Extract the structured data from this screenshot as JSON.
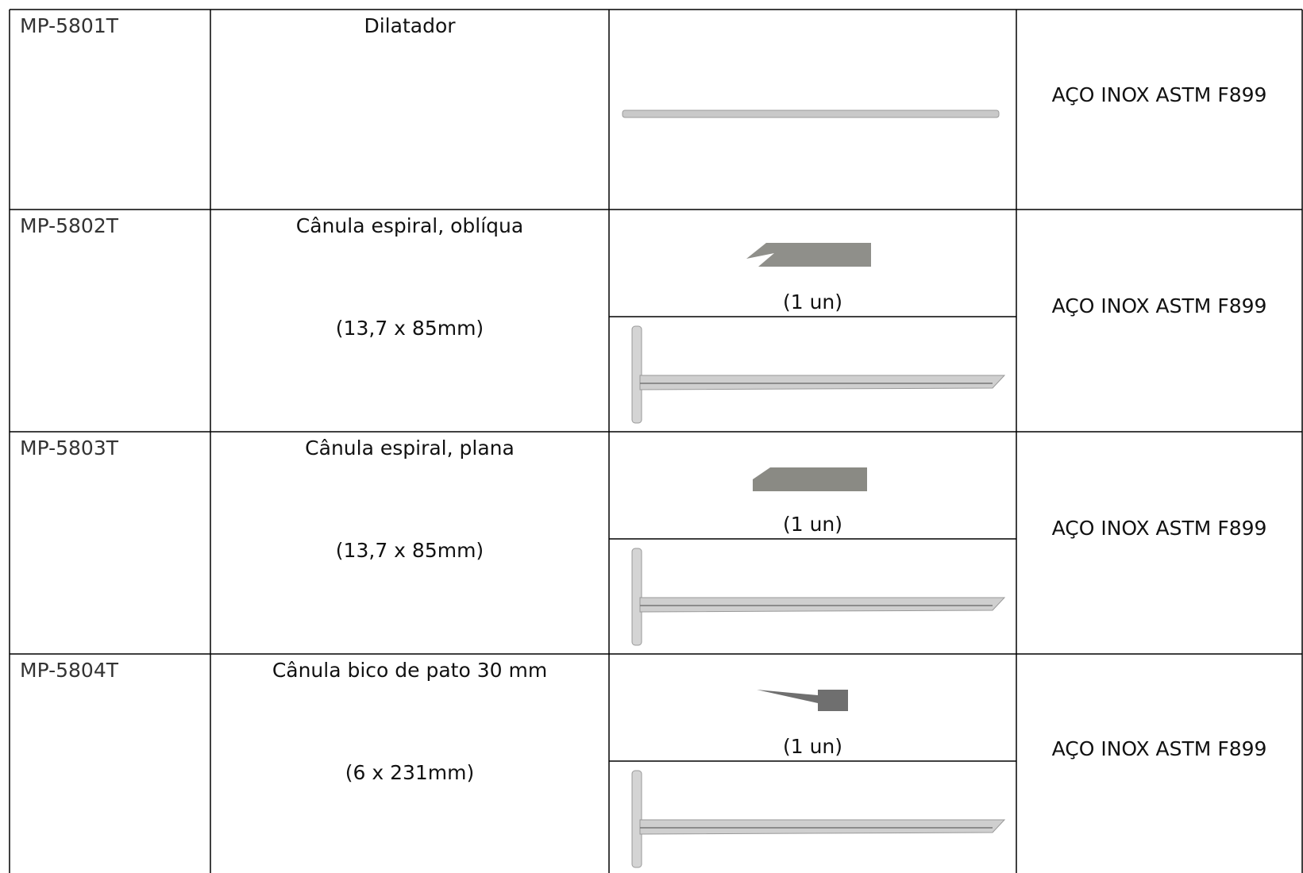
{
  "table": {
    "rows": [
      {
        "code": "MP-5801T",
        "description": [
          "Dilatador"
        ],
        "material": "AÇO INOX ASTM F899"
      },
      {
        "code": "MP-5802T",
        "description": [
          "Cânula espiral, oblíqua",
          "(13,7 x 85mm)"
        ],
        "caption": "(1 un)",
        "material": "AÇO INOX ASTM F899"
      },
      {
        "code": "MP-5803T",
        "description": [
          "Cânula espiral, plana",
          "(13,7 x 85mm)"
        ],
        "caption": "(1 un)",
        "material": "AÇO INOX ASTM F899"
      },
      {
        "code": "MP-5804T",
        "description": [
          "Cânula bico de pato 30 mm",
          "(6 x 231mm)"
        ],
        "caption": "(1 un)",
        "material": "AÇO INOX ASTM F899"
      }
    ]
  }
}
